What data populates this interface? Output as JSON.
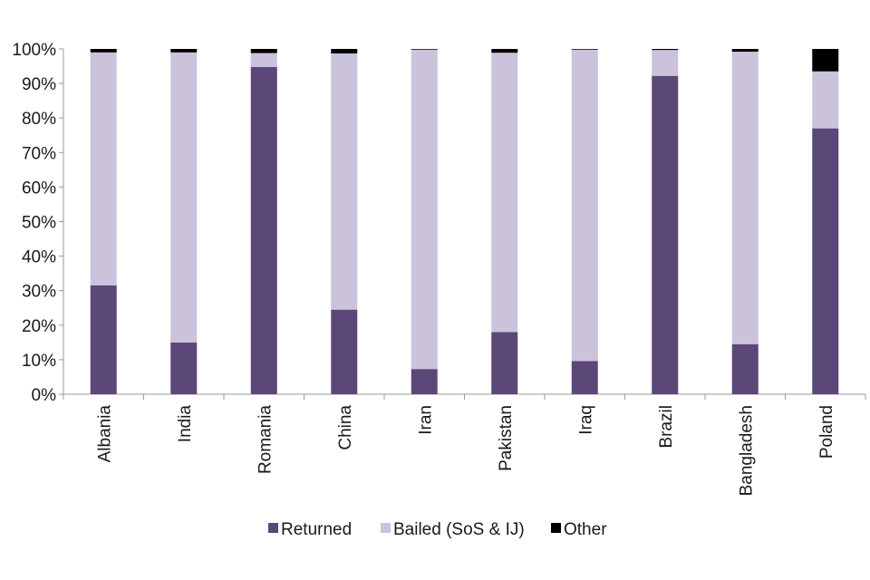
{
  "chart_data": {
    "type": "bar",
    "stacked": true,
    "title": "",
    "xlabel": "",
    "ylabel": "",
    "ylim": [
      0,
      100
    ],
    "y_ticks": [
      "0%",
      "10%",
      "20%",
      "30%",
      "40%",
      "50%",
      "60%",
      "70%",
      "80%",
      "90%",
      "100%"
    ],
    "categories": [
      "Albania",
      "India",
      "Romania",
      "China",
      "Iran",
      "Pakistan",
      "Iraq",
      "Brazil",
      "Bangladesh",
      "Poland"
    ],
    "series": [
      {
        "name": "Returned",
        "color": "#5b4878",
        "values": [
          31.5,
          15,
          94.8,
          24.5,
          7.3,
          18,
          9.6,
          92.2,
          14.5,
          77
        ]
      },
      {
        "name": "Bailed (SoS & IJ)",
        "color": "#cbc2db",
        "values": [
          67.5,
          84,
          4,
          74.2,
          92.5,
          80.9,
          90.2,
          7.5,
          84.7,
          16.5
        ]
      },
      {
        "name": "Other",
        "color": "#000000",
        "values": [
          1,
          1,
          1.2,
          1.3,
          0.2,
          1.1,
          0.2,
          0.3,
          0.8,
          6.5
        ]
      }
    ],
    "legend_position": "bottom",
    "grid": false
  }
}
